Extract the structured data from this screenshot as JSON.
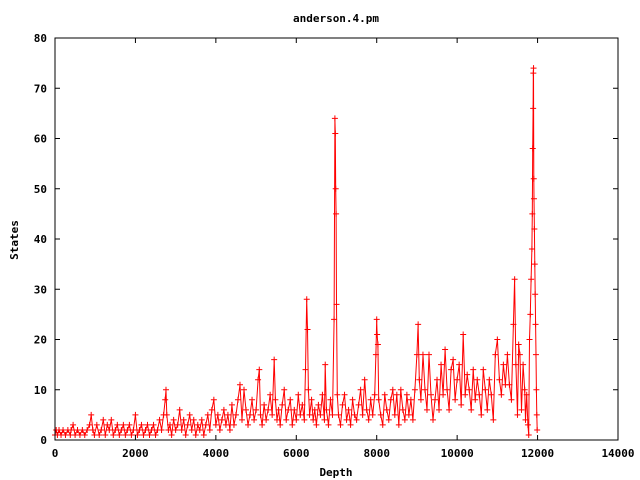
{
  "chart_data": {
    "type": "line",
    "title": "anderson.4.pm",
    "xlabel": "Depth",
    "ylabel": "States",
    "xlim": [
      0,
      14000
    ],
    "ylim": [
      0,
      80
    ],
    "x_ticks": [
      "0",
      "2000",
      "4000",
      "6000",
      "8000",
      "10000",
      "12000",
      "14000"
    ],
    "y_ticks": [
      "0",
      "10",
      "20",
      "30",
      "40",
      "50",
      "60",
      "70",
      "80"
    ],
    "grid": false,
    "legend": "none",
    "marker": "plus",
    "color": "#ff0000",
    "series": [
      {
        "points": [
          [
            0,
            1
          ],
          [
            30,
            2
          ],
          [
            60,
            1
          ],
          [
            100,
            2
          ],
          [
            150,
            1
          ],
          [
            200,
            2
          ],
          [
            260,
            1
          ],
          [
            320,
            2
          ],
          [
            380,
            1
          ],
          [
            400,
            2
          ],
          [
            450,
            3
          ],
          [
            500,
            1
          ],
          [
            560,
            2
          ],
          [
            620,
            1
          ],
          [
            680,
            2
          ],
          [
            740,
            1
          ],
          [
            800,
            2
          ],
          [
            860,
            3
          ],
          [
            900,
            5
          ],
          [
            940,
            2
          ],
          [
            980,
            1
          ],
          [
            1040,
            3
          ],
          [
            1100,
            1
          ],
          [
            1150,
            2
          ],
          [
            1200,
            4
          ],
          [
            1250,
            1
          ],
          [
            1300,
            3
          ],
          [
            1350,
            2
          ],
          [
            1400,
            4
          ],
          [
            1450,
            1
          ],
          [
            1500,
            2
          ],
          [
            1550,
            3
          ],
          [
            1600,
            1
          ],
          [
            1650,
            2
          ],
          [
            1700,
            3
          ],
          [
            1750,
            1
          ],
          [
            1800,
            2
          ],
          [
            1850,
            3
          ],
          [
            1900,
            1
          ],
          [
            1950,
            2
          ],
          [
            2000,
            5
          ],
          [
            2050,
            1
          ],
          [
            2100,
            2
          ],
          [
            2150,
            3
          ],
          [
            2200,
            1
          ],
          [
            2250,
            2
          ],
          [
            2300,
            3
          ],
          [
            2350,
            1
          ],
          [
            2400,
            2
          ],
          [
            2450,
            3
          ],
          [
            2500,
            1
          ],
          [
            2550,
            2
          ],
          [
            2600,
            4
          ],
          [
            2650,
            2
          ],
          [
            2700,
            5
          ],
          [
            2740,
            8
          ],
          [
            2760,
            10
          ],
          [
            2780,
            5
          ],
          [
            2820,
            2
          ],
          [
            2860,
            3
          ],
          [
            2900,
            1
          ],
          [
            2950,
            4
          ],
          [
            3000,
            2
          ],
          [
            3050,
            3
          ],
          [
            3100,
            6
          ],
          [
            3150,
            2
          ],
          [
            3200,
            4
          ],
          [
            3250,
            1
          ],
          [
            3300,
            3
          ],
          [
            3350,
            5
          ],
          [
            3400,
            2
          ],
          [
            3450,
            4
          ],
          [
            3500,
            1
          ],
          [
            3550,
            3
          ],
          [
            3600,
            2
          ],
          [
            3650,
            4
          ],
          [
            3700,
            1
          ],
          [
            3750,
            3
          ],
          [
            3800,
            5
          ],
          [
            3850,
            2
          ],
          [
            3900,
            6
          ],
          [
            3950,
            8
          ],
          [
            4000,
            3
          ],
          [
            4050,
            5
          ],
          [
            4100,
            2
          ],
          [
            4150,
            4
          ],
          [
            4200,
            6
          ],
          [
            4250,
            3
          ],
          [
            4300,
            5
          ],
          [
            4350,
            2
          ],
          [
            4400,
            7
          ],
          [
            4450,
            3
          ],
          [
            4500,
            5
          ],
          [
            4550,
            8
          ],
          [
            4600,
            11
          ],
          [
            4650,
            4
          ],
          [
            4700,
            10
          ],
          [
            4750,
            6
          ],
          [
            4800,
            3
          ],
          [
            4850,
            5
          ],
          [
            4900,
            8
          ],
          [
            4950,
            4
          ],
          [
            5000,
            6
          ],
          [
            5050,
            12
          ],
          [
            5080,
            14
          ],
          [
            5110,
            5
          ],
          [
            5150,
            3
          ],
          [
            5200,
            7
          ],
          [
            5250,
            4
          ],
          [
            5300,
            6
          ],
          [
            5350,
            9
          ],
          [
            5400,
            5
          ],
          [
            5450,
            16
          ],
          [
            5480,
            8
          ],
          [
            5520,
            4
          ],
          [
            5560,
            6
          ],
          [
            5600,
            3
          ],
          [
            5650,
            7
          ],
          [
            5700,
            10
          ],
          [
            5750,
            4
          ],
          [
            5800,
            6
          ],
          [
            5850,
            8
          ],
          [
            5900,
            3
          ],
          [
            5950,
            6
          ],
          [
            6000,
            4
          ],
          [
            6050,
            9
          ],
          [
            6100,
            5
          ],
          [
            6150,
            7
          ],
          [
            6200,
            4
          ],
          [
            6230,
            14
          ],
          [
            6260,
            28
          ],
          [
            6280,
            22
          ],
          [
            6300,
            10
          ],
          [
            6330,
            5
          ],
          [
            6380,
            8
          ],
          [
            6420,
            4
          ],
          [
            6460,
            6
          ],
          [
            6500,
            3
          ],
          [
            6550,
            7
          ],
          [
            6600,
            5
          ],
          [
            6650,
            9
          ],
          [
            6700,
            4
          ],
          [
            6720,
            15
          ],
          [
            6750,
            6
          ],
          [
            6800,
            3
          ],
          [
            6850,
            8
          ],
          [
            6900,
            5
          ],
          [
            6940,
            24
          ],
          [
            6960,
            64
          ],
          [
            6970,
            61
          ],
          [
            6980,
            50
          ],
          [
            6990,
            45
          ],
          [
            7000,
            27
          ],
          [
            7020,
            9
          ],
          [
            7050,
            5
          ],
          [
            7100,
            3
          ],
          [
            7150,
            7
          ],
          [
            7200,
            9
          ],
          [
            7250,
            4
          ],
          [
            7300,
            6
          ],
          [
            7350,
            3
          ],
          [
            7400,
            8
          ],
          [
            7450,
            5
          ],
          [
            7500,
            4
          ],
          [
            7550,
            7
          ],
          [
            7600,
            10
          ],
          [
            7650,
            5
          ],
          [
            7700,
            12
          ],
          [
            7750,
            6
          ],
          [
            7800,
            4
          ],
          [
            7850,
            8
          ],
          [
            7900,
            5
          ],
          [
            7950,
            9
          ],
          [
            7980,
            17
          ],
          [
            8000,
            24
          ],
          [
            8010,
            21
          ],
          [
            8030,
            19
          ],
          [
            8050,
            8
          ],
          [
            8100,
            5
          ],
          [
            8150,
            3
          ],
          [
            8200,
            9
          ],
          [
            8250,
            6
          ],
          [
            8300,
            4
          ],
          [
            8350,
            8
          ],
          [
            8400,
            10
          ],
          [
            8450,
            5
          ],
          [
            8500,
            9
          ],
          [
            8550,
            3
          ],
          [
            8600,
            10
          ],
          [
            8650,
            6
          ],
          [
            8700,
            4
          ],
          [
            8750,
            9
          ],
          [
            8800,
            5
          ],
          [
            8850,
            8
          ],
          [
            8900,
            4
          ],
          [
            8950,
            10
          ],
          [
            9000,
            17
          ],
          [
            9030,
            23
          ],
          [
            9060,
            12
          ],
          [
            9100,
            8
          ],
          [
            9150,
            17
          ],
          [
            9200,
            10
          ],
          [
            9250,
            6
          ],
          [
            9300,
            17
          ],
          [
            9350,
            9
          ],
          [
            9400,
            4
          ],
          [
            9450,
            8
          ],
          [
            9500,
            12
          ],
          [
            9550,
            6
          ],
          [
            9600,
            15
          ],
          [
            9650,
            9
          ],
          [
            9700,
            18
          ],
          [
            9750,
            10
          ],
          [
            9800,
            6
          ],
          [
            9850,
            14
          ],
          [
            9900,
            16
          ],
          [
            9950,
            8
          ],
          [
            10000,
            12
          ],
          [
            10050,
            15
          ],
          [
            10100,
            7
          ],
          [
            10150,
            21
          ],
          [
            10200,
            9
          ],
          [
            10250,
            13
          ],
          [
            10300,
            10
          ],
          [
            10350,
            6
          ],
          [
            10400,
            14
          ],
          [
            10450,
            8
          ],
          [
            10500,
            12
          ],
          [
            10550,
            9
          ],
          [
            10600,
            5
          ],
          [
            10650,
            14
          ],
          [
            10700,
            10
          ],
          [
            10750,
            6
          ],
          [
            10800,
            12
          ],
          [
            10850,
            9
          ],
          [
            10900,
            4
          ],
          [
            10950,
            17
          ],
          [
            11000,
            20
          ],
          [
            11050,
            12
          ],
          [
            11100,
            9
          ],
          [
            11150,
            15
          ],
          [
            11200,
            11
          ],
          [
            11250,
            17
          ],
          [
            11300,
            11
          ],
          [
            11350,
            8
          ],
          [
            11400,
            23
          ],
          [
            11430,
            32
          ],
          [
            11460,
            15
          ],
          [
            11500,
            5
          ],
          [
            11530,
            19
          ],
          [
            11560,
            17
          ],
          [
            11600,
            6
          ],
          [
            11640,
            15
          ],
          [
            11680,
            10
          ],
          [
            11700,
            4
          ],
          [
            11730,
            9
          ],
          [
            11760,
            3
          ],
          [
            11780,
            1
          ],
          [
            11800,
            20
          ],
          [
            11820,
            25
          ],
          [
            11840,
            32
          ],
          [
            11860,
            38
          ],
          [
            11870,
            45
          ],
          [
            11880,
            58
          ],
          [
            11890,
            66
          ],
          [
            11895,
            73
          ],
          [
            11900,
            74
          ],
          [
            11905,
            52
          ],
          [
            11910,
            48
          ],
          [
            11920,
            42
          ],
          [
            11930,
            35
          ],
          [
            11940,
            29
          ],
          [
            11950,
            23
          ],
          [
            11960,
            17
          ],
          [
            11970,
            10
          ],
          [
            11980,
            5
          ],
          [
            11990,
            2
          ]
        ]
      }
    ]
  }
}
